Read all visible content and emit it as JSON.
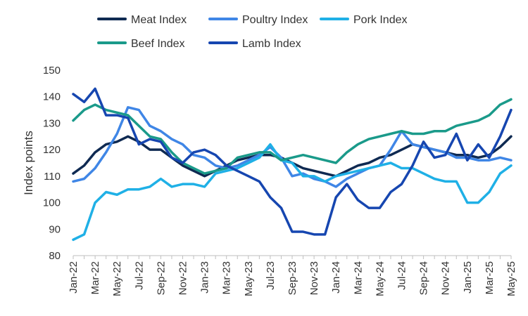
{
  "chart_data": {
    "type": "line",
    "title": "",
    "xlabel": "",
    "ylabel": "Index points",
    "ylim": [
      80,
      150
    ],
    "yticks": [
      80,
      90,
      100,
      110,
      120,
      130,
      140,
      150
    ],
    "grid": false,
    "legend_position": "top",
    "x": [
      "Jan-22",
      "Feb-22",
      "Mar-22",
      "Apr-22",
      "May-22",
      "Jun-22",
      "Jul-22",
      "Aug-22",
      "Sep-22",
      "Oct-22",
      "Nov-22",
      "Dec-22",
      "Jan-23",
      "Feb-23",
      "Mar-23",
      "Apr-23",
      "May-23",
      "Jun-23",
      "Jul-23",
      "Aug-23",
      "Sep-23",
      "Oct-23",
      "Nov-23",
      "Dec-23",
      "Jan-24",
      "Feb-24",
      "Mar-24",
      "Apr-24",
      "May-24",
      "Jun-24",
      "Jul-24",
      "Aug-24",
      "Sep-24",
      "Oct-24",
      "Nov-24",
      "Dec-24",
      "Jan-25",
      "Feb-25",
      "Mar-25",
      "Apr-25",
      "May-25"
    ],
    "x_tick_labels": [
      "Jan-22",
      "Mar-22",
      "May-22",
      "Jul-22",
      "Sep-22",
      "Nov-22",
      "Jan-23",
      "Mar-23",
      "May-23",
      "Jul-23",
      "Sep-23",
      "Nov-23",
      "Jan-24",
      "Mar-24",
      "May-24",
      "Jul-24",
      "Sep-24",
      "Nov-24",
      "Jan-25",
      "Mar-25",
      "May-25"
    ],
    "series": [
      {
        "name": "Meat Index",
        "color": "#0f2a52",
        "values": [
          111,
          114,
          119,
          122,
          123,
          125,
          123,
          120,
          120,
          117,
          114,
          112,
          110,
          112,
          114,
          116,
          117,
          118,
          118,
          117,
          115,
          113,
          112,
          111,
          110,
          112,
          114,
          115,
          117,
          118,
          120,
          122,
          121,
          120,
          119,
          118,
          118,
          117,
          118,
          121,
          125
        ]
      },
      {
        "name": "Poultry Index",
        "color": "#3f86e6",
        "values": [
          108,
          109,
          113,
          119,
          126,
          136,
          135,
          129,
          127,
          124,
          122,
          118,
          117,
          114,
          113,
          114,
          116,
          118,
          121,
          117,
          110,
          111,
          109,
          108,
          106,
          109,
          111,
          113,
          114,
          120,
          127,
          122,
          121,
          120,
          119,
          117,
          117,
          116,
          116,
          117,
          116
        ]
      },
      {
        "name": "Pork Index",
        "color": "#1fb0e6",
        "values": [
          86,
          88,
          100,
          104,
          103,
          105,
          105,
          106,
          109,
          106,
          107,
          107,
          106,
          111,
          112,
          113,
          115,
          117,
          122,
          116,
          115,
          110,
          110,
          108,
          110,
          111,
          112,
          113,
          114,
          115,
          113,
          113,
          111,
          109,
          108,
          108,
          100,
          100,
          104,
          111,
          114
        ]
      },
      {
        "name": "Beef Index",
        "color": "#1a9a8a",
        "values": [
          131,
          135,
          137,
          135,
          134,
          133,
          129,
          125,
          124,
          119,
          115,
          113,
          111,
          112,
          113,
          117,
          118,
          119,
          119,
          116,
          117,
          118,
          117,
          116,
          115,
          119,
          122,
          124,
          125,
          126,
          127,
          126,
          126,
          127,
          127,
          129,
          130,
          131,
          133,
          137,
          139
        ]
      },
      {
        "name": "Lamb Index",
        "color": "#1646b0",
        "values": [
          141,
          138,
          143,
          133,
          133,
          132,
          122,
          124,
          123,
          117,
          115,
          119,
          120,
          118,
          114,
          112,
          110,
          108,
          102,
          98,
          89,
          89,
          88,
          88,
          102,
          107,
          101,
          98,
          98,
          104,
          107,
          114,
          123,
          117,
          118,
          126,
          116,
          122,
          117,
          125,
          135
        ]
      }
    ]
  }
}
